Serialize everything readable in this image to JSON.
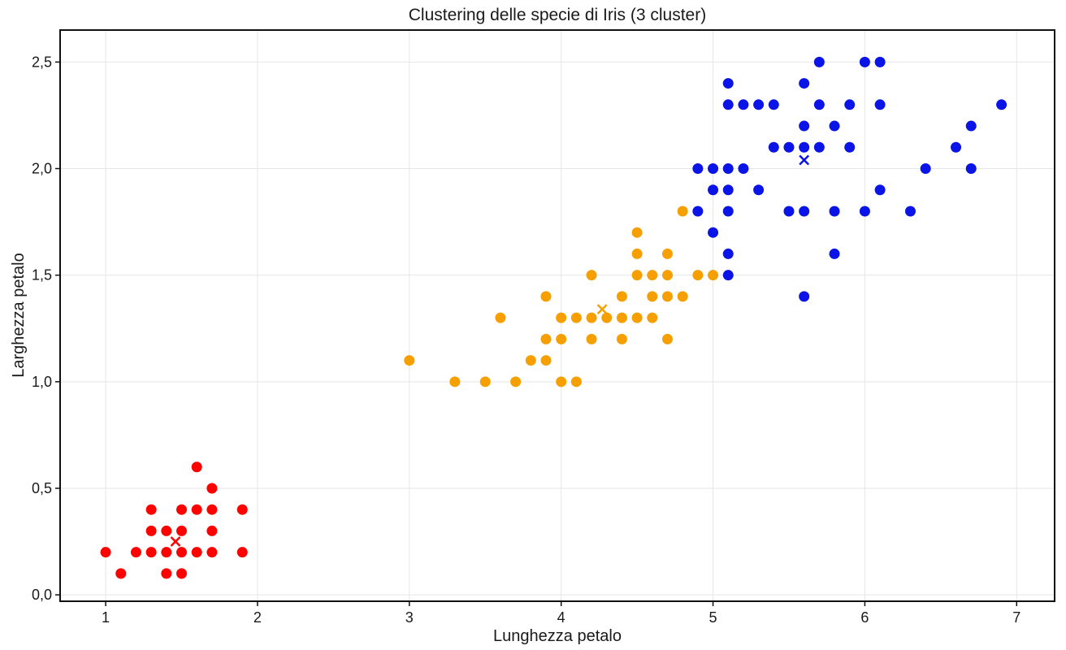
{
  "chart_data": {
    "type": "scatter",
    "title": "Clustering delle specie di Iris (3 cluster)",
    "xlabel": "Lunghezza petalo",
    "ylabel": "Larghezza petalo",
    "xlim": [
      0.7,
      7.25
    ],
    "ylim": [
      -0.03,
      2.65
    ],
    "x_ticks": [
      1,
      2,
      3,
      4,
      5,
      6,
      7
    ],
    "x_tick_labels": [
      "1",
      "2",
      "3",
      "4",
      "5",
      "6",
      "7"
    ],
    "y_ticks": [
      0,
      0.5,
      1,
      1.5,
      2,
      2.5
    ],
    "y_tick_labels": [
      "0,0",
      "0,5",
      "1,0",
      "1,5",
      "2,0",
      "2,5"
    ],
    "grid": true,
    "series": [
      {
        "color": "#ff0000",
        "points": [
          [
            1.0,
            0.2
          ],
          [
            1.1,
            0.1
          ],
          [
            1.2,
            0.2
          ],
          [
            1.3,
            0.2
          ],
          [
            1.3,
            0.3
          ],
          [
            1.3,
            0.4
          ],
          [
            1.4,
            0.1
          ],
          [
            1.4,
            0.2
          ],
          [
            1.4,
            0.3
          ],
          [
            1.5,
            0.1
          ],
          [
            1.5,
            0.2
          ],
          [
            1.5,
            0.3
          ],
          [
            1.5,
            0.4
          ],
          [
            1.6,
            0.2
          ],
          [
            1.6,
            0.4
          ],
          [
            1.6,
            0.6
          ],
          [
            1.7,
            0.2
          ],
          [
            1.7,
            0.3
          ],
          [
            1.7,
            0.4
          ],
          [
            1.7,
            0.5
          ],
          [
            1.9,
            0.2
          ],
          [
            1.9,
            0.4
          ]
        ],
        "centroid": [
          1.46,
          0.25
        ]
      },
      {
        "color": "#f5a000",
        "points": [
          [
            3.0,
            1.1
          ],
          [
            3.3,
            1.0
          ],
          [
            3.5,
            1.0
          ],
          [
            3.6,
            1.3
          ],
          [
            3.7,
            1.0
          ],
          [
            3.8,
            1.1
          ],
          [
            3.9,
            1.1
          ],
          [
            3.9,
            1.2
          ],
          [
            3.9,
            1.4
          ],
          [
            4.0,
            1.0
          ],
          [
            4.0,
            1.2
          ],
          [
            4.0,
            1.3
          ],
          [
            4.1,
            1.0
          ],
          [
            4.1,
            1.3
          ],
          [
            4.2,
            1.2
          ],
          [
            4.2,
            1.3
          ],
          [
            4.2,
            1.5
          ],
          [
            4.3,
            1.3
          ],
          [
            4.4,
            1.2
          ],
          [
            4.4,
            1.3
          ],
          [
            4.4,
            1.4
          ],
          [
            4.5,
            1.3
          ],
          [
            4.5,
            1.5
          ],
          [
            4.5,
            1.6
          ],
          [
            4.5,
            1.7
          ],
          [
            4.6,
            1.3
          ],
          [
            4.6,
            1.4
          ],
          [
            4.6,
            1.5
          ],
          [
            4.7,
            1.2
          ],
          [
            4.7,
            1.4
          ],
          [
            4.7,
            1.5
          ],
          [
            4.7,
            1.6
          ],
          [
            4.8,
            1.4
          ],
          [
            4.8,
            1.8
          ],
          [
            4.9,
            1.5
          ],
          [
            5.0,
            1.5
          ]
        ],
        "centroid": [
          4.27,
          1.34
        ]
      },
      {
        "color": "#0a14e6",
        "points": [
          [
            4.9,
            1.8
          ],
          [
            4.9,
            2.0
          ],
          [
            5.0,
            1.7
          ],
          [
            5.0,
            1.9
          ],
          [
            5.0,
            2.0
          ],
          [
            5.1,
            1.5
          ],
          [
            5.1,
            1.6
          ],
          [
            5.1,
            1.8
          ],
          [
            5.1,
            1.9
          ],
          [
            5.1,
            2.0
          ],
          [
            5.1,
            2.3
          ],
          [
            5.1,
            2.4
          ],
          [
            5.2,
            2.0
          ],
          [
            5.2,
            2.3
          ],
          [
            5.3,
            1.9
          ],
          [
            5.3,
            2.3
          ],
          [
            5.4,
            2.1
          ],
          [
            5.4,
            2.3
          ],
          [
            5.5,
            1.8
          ],
          [
            5.5,
            2.1
          ],
          [
            5.6,
            1.4
          ],
          [
            5.6,
            1.8
          ],
          [
            5.6,
            2.1
          ],
          [
            5.6,
            2.2
          ],
          [
            5.6,
            2.4
          ],
          [
            5.7,
            2.1
          ],
          [
            5.7,
            2.3
          ],
          [
            5.7,
            2.5
          ],
          [
            5.8,
            1.6
          ],
          [
            5.8,
            1.8
          ],
          [
            5.8,
            2.2
          ],
          [
            5.9,
            2.1
          ],
          [
            5.9,
            2.3
          ],
          [
            6.0,
            1.8
          ],
          [
            6.0,
            2.5
          ],
          [
            6.1,
            1.9
          ],
          [
            6.1,
            2.3
          ],
          [
            6.1,
            2.5
          ],
          [
            6.3,
            1.8
          ],
          [
            6.4,
            2.0
          ],
          [
            6.6,
            2.1
          ],
          [
            6.7,
            2.0
          ],
          [
            6.7,
            2.2
          ],
          [
            6.9,
            2.3
          ]
        ],
        "centroid": [
          5.6,
          2.04
        ]
      }
    ]
  }
}
